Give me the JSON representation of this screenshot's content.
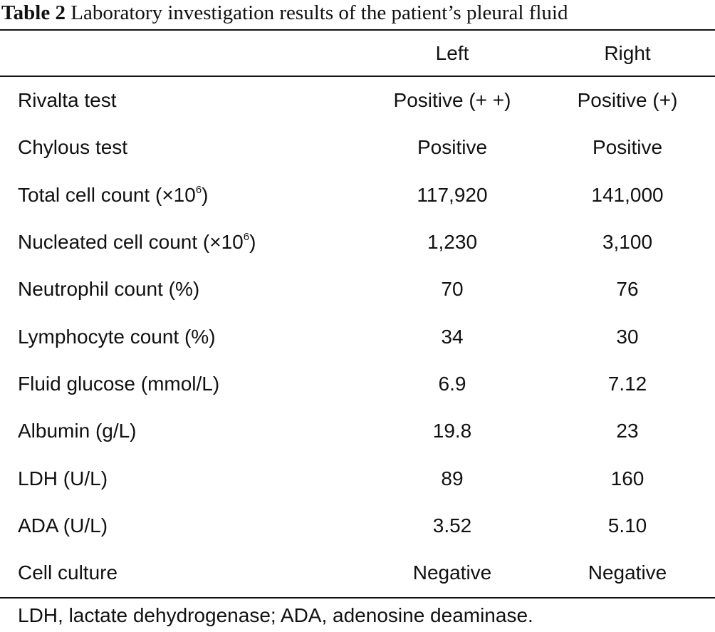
{
  "caption": {
    "label": "Table 2",
    "text": "Laboratory investigation results of the patient’s pleural fluid"
  },
  "table": {
    "columns": {
      "label": "",
      "left": "Left",
      "right": "Right"
    },
    "rows": [
      {
        "label": "Rivalta test",
        "left": "Positive (+ +)",
        "right": "Positive (+)"
      },
      {
        "label": "Chylous test",
        "left": "Positive",
        "right": "Positive"
      },
      {
        "label": "Total cell count (×10",
        "sup": "6",
        "suffix": ")",
        "left": "117,920",
        "right": "141,000"
      },
      {
        "label": "Nucleated cell count (×10",
        "sup": "6",
        "suffix": ")",
        "left": "1,230",
        "right": "3,100"
      },
      {
        "label": "Neutrophil count (%)",
        "left": "70",
        "right": "76"
      },
      {
        "label": "Lymphocyte count (%)",
        "left": "34",
        "right": "30"
      },
      {
        "label": "Fluid glucose (mmol/L)",
        "left": "6.9",
        "right": "7.12"
      },
      {
        "label": "Albumin (g/L)",
        "left": "19.8",
        "right": "23"
      },
      {
        "label": "LDH (U/L)",
        "left": "89",
        "right": "160"
      },
      {
        "label": "ADA (U/L)",
        "left": "3.52",
        "right": "5.10"
      },
      {
        "label": "Cell culture",
        "left": "Negative",
        "right": "Negative"
      }
    ]
  },
  "footnote": "LDH, lactate dehydrogenase; ADA, adenosine deaminase."
}
